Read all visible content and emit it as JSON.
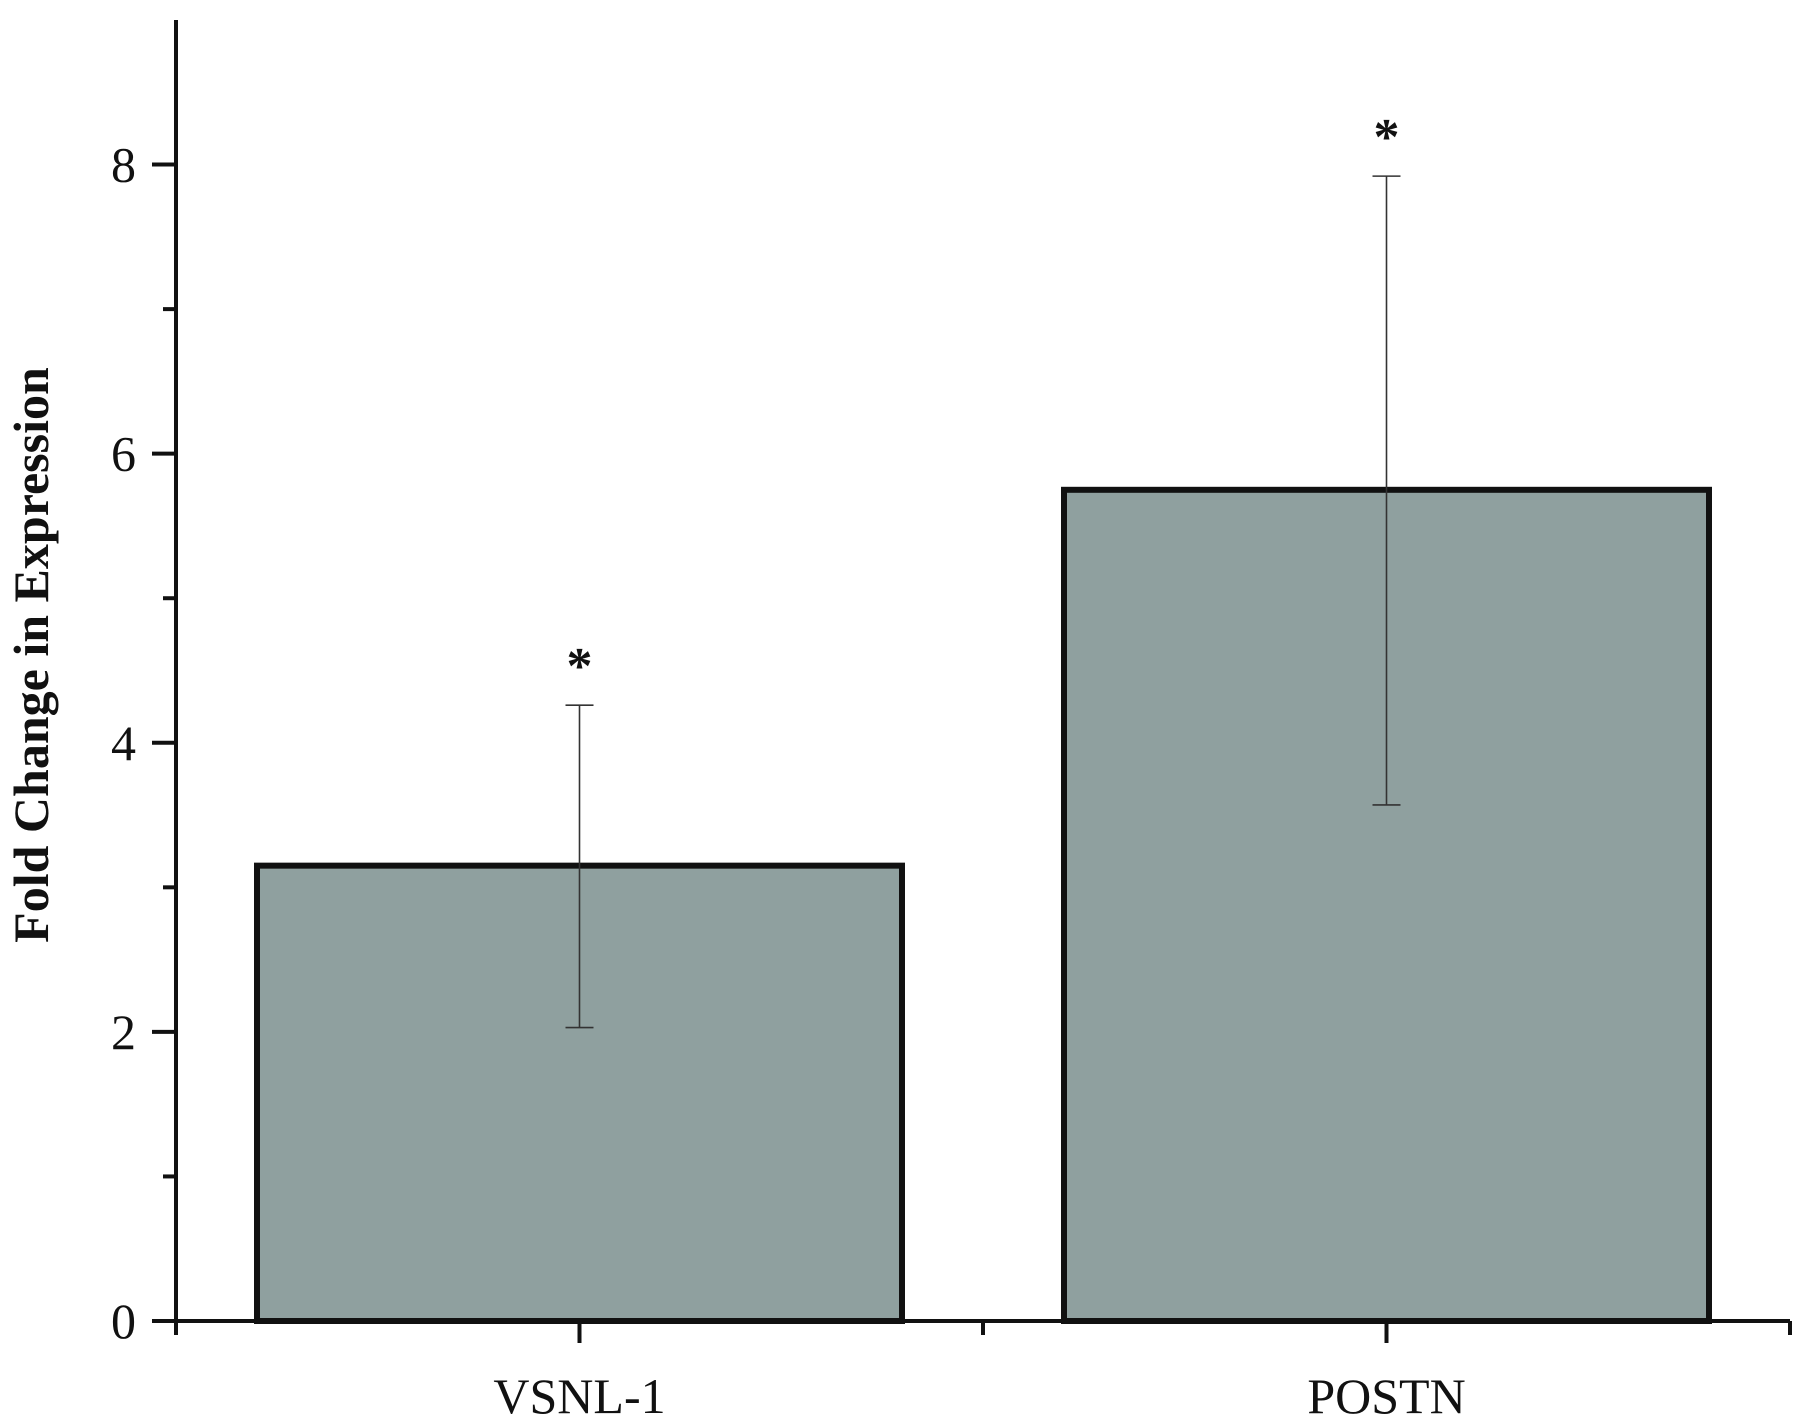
{
  "chart_data": {
    "type": "bar",
    "title": "",
    "xlabel": "",
    "ylabel": "Fold Change in Expression",
    "categories": [
      "VSNL-1",
      "POSTN"
    ],
    "values": [
      3.15,
      5.75
    ],
    "error_low": [
      2.03,
      3.57
    ],
    "error_high": [
      4.26,
      7.92
    ],
    "significance": [
      "*",
      "*"
    ],
    "ylim": [
      0,
      9
    ],
    "y_major_ticks": [
      0,
      2,
      4,
      6,
      8
    ],
    "y_major_tick_labels": [
      "0",
      "2",
      "4",
      "6",
      "8"
    ],
    "y_minor_ticks": [
      1,
      3,
      5,
      7
    ],
    "grid": false,
    "bar_color": "#8fa09f",
    "bar_edge_color": "#111111"
  }
}
